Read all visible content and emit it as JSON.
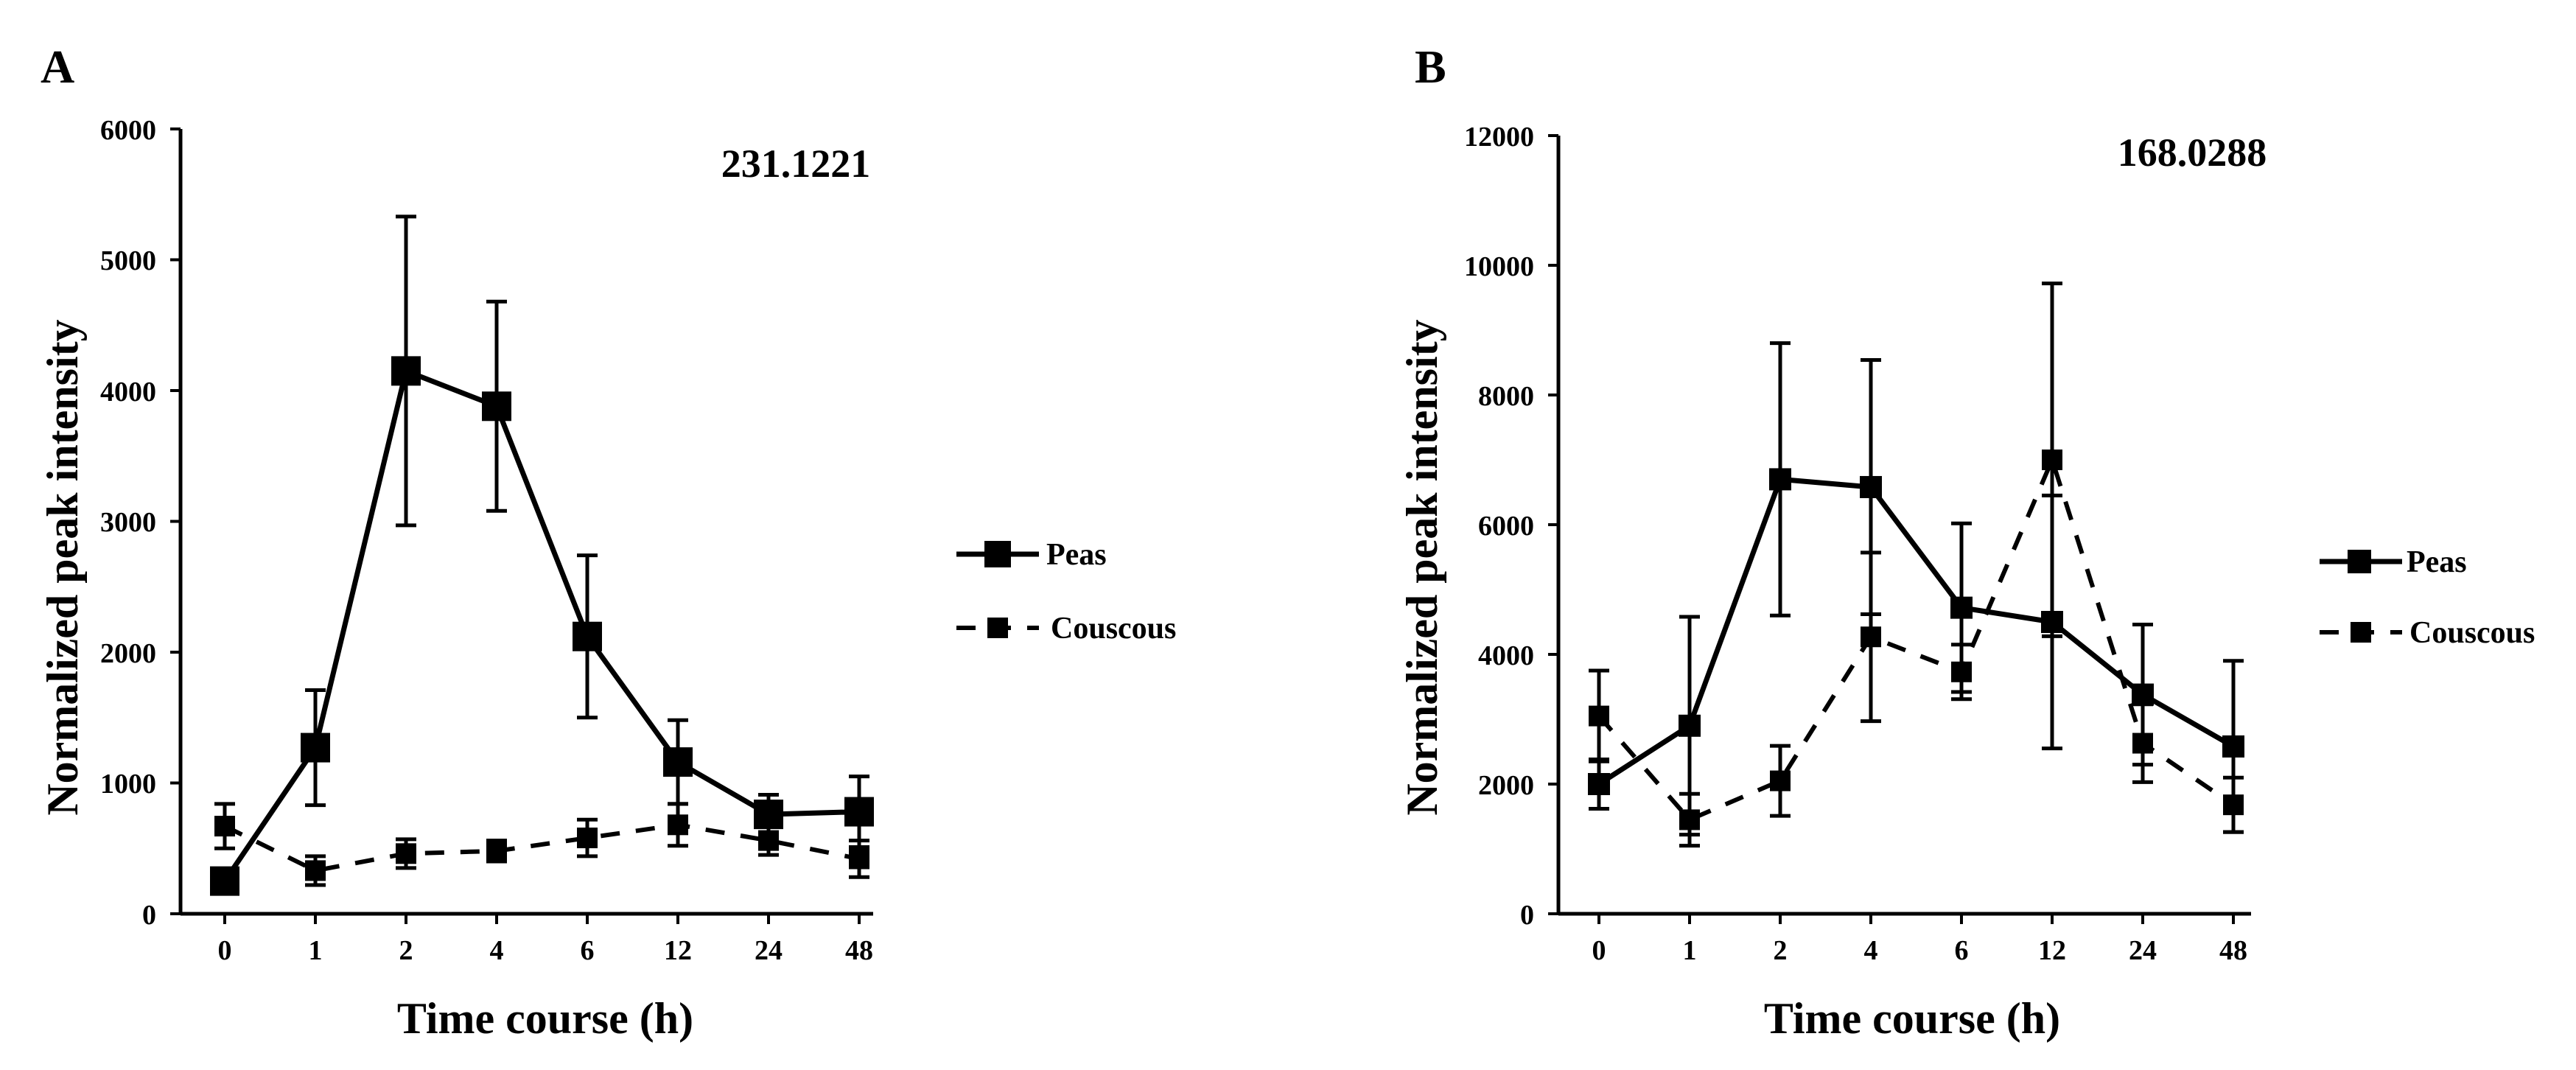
{
  "figure": {
    "panels": [
      {
        "label": "A",
        "annotation": "231.1221",
        "ylabel": "Normalized peak intensity",
        "xlabel": "Time course (h)",
        "yticks": [
          "0",
          "1000",
          "2000",
          "3000",
          "4000",
          "5000",
          "6000"
        ],
        "legend": [
          "Peas",
          "Couscous"
        ]
      },
      {
        "label": "B",
        "annotation": "168.0288",
        "ylabel": "Normalized peak intensity",
        "xlabel": "Time course (h)",
        "yticks": [
          "0",
          "2000",
          "4000",
          "6000",
          "8000",
          "10000",
          "12000"
        ],
        "legend": [
          "Peas",
          "Couscous"
        ]
      }
    ]
  },
  "chart_data": [
    {
      "type": "line",
      "title": "231.1221",
      "panel": "A",
      "xlabel": "Time course (h)",
      "ylabel": "Normalized peak intensity",
      "categories": [
        "0",
        "1",
        "2",
        "4",
        "6",
        "12",
        "24",
        "48"
      ],
      "ylim": [
        0,
        6000
      ],
      "yticks": [
        0,
        1000,
        2000,
        3000,
        4000,
        5000,
        6000
      ],
      "grid": false,
      "legend_position": "right",
      "series": [
        {
          "name": "Peas",
          "style": "solid",
          "values": [
            250,
            1270,
            4150,
            3880,
            2120,
            1160,
            760,
            780
          ],
          "errors": [
            60,
            440,
            1180,
            800,
            620,
            320,
            150,
            270
          ]
        },
        {
          "name": "Couscous",
          "style": "dashed",
          "values": [
            670,
            330,
            460,
            480,
            580,
            680,
            560,
            420
          ],
          "errors": [
            170,
            110,
            110,
            80,
            140,
            160,
            110,
            140
          ]
        }
      ]
    },
    {
      "type": "line",
      "title": "168.0288",
      "panel": "B",
      "xlabel": "Time course (h)",
      "ylabel": "Normalized peak intensity",
      "categories": [
        "0",
        "1",
        "2",
        "4",
        "6",
        "12",
        "24",
        "48"
      ],
      "ylim": [
        0,
        12000
      ],
      "yticks": [
        0,
        2000,
        4000,
        6000,
        8000,
        10000,
        12000
      ],
      "grid": false,
      "legend_position": "right",
      "series": [
        {
          "name": "Peas",
          "style": "solid",
          "values": [
            2000,
            2900,
            6700,
            6580,
            4720,
            4500,
            3380,
            2580
          ],
          "errors": [
            380,
            1680,
            2100,
            1960,
            1300,
            1950,
            1080,
            1320
          ]
        },
        {
          "name": "Couscous",
          "style": "dashed",
          "values": [
            3050,
            1450,
            2050,
            4270,
            3730,
            7000,
            2630,
            1680
          ],
          "errors": [
            700,
            400,
            540,
            1300,
            420,
            2720,
            600,
            420
          ]
        }
      ]
    }
  ]
}
